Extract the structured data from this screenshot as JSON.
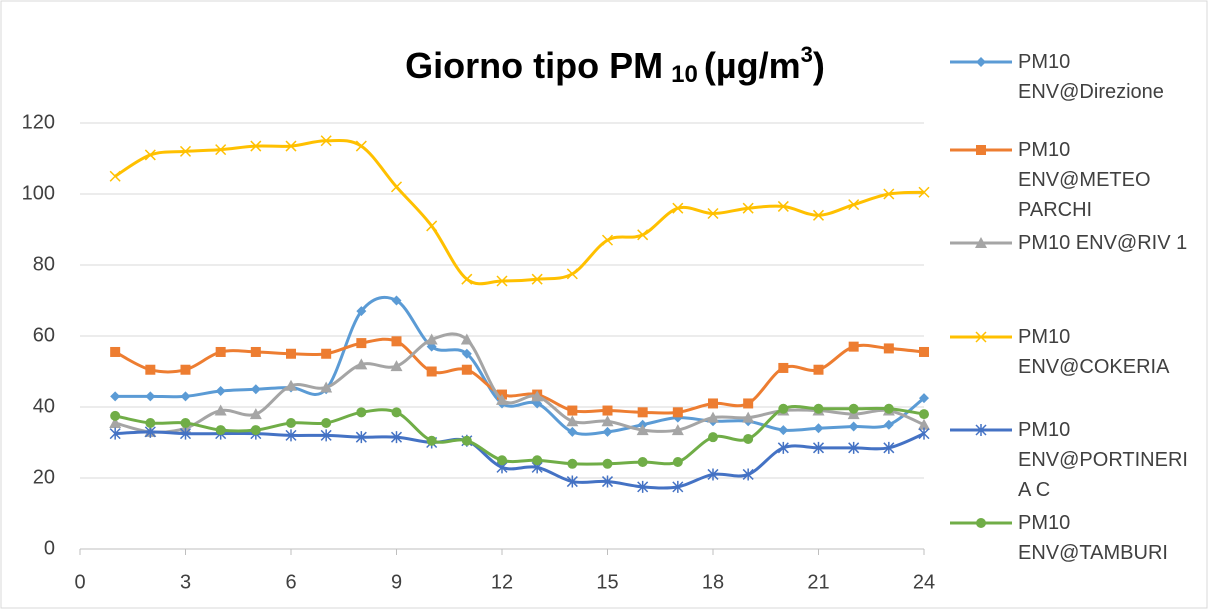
{
  "chart_data": {
    "type": "line",
    "title": [
      "Giorno tipo PM",
      "10",
      "(µg/m",
      "3",
      ")"
    ],
    "x": [
      1,
      2,
      3,
      4,
      5,
      6,
      7,
      8,
      9,
      10,
      11,
      12,
      13,
      14,
      15,
      16,
      17,
      18,
      19,
      20,
      21,
      22,
      23,
      24
    ],
    "xlim": [
      0,
      24
    ],
    "xticks": [
      0,
      3,
      6,
      9,
      12,
      15,
      18,
      21,
      24
    ],
    "ylim": [
      0,
      120
    ],
    "yticks": [
      0,
      20,
      40,
      60,
      80,
      100,
      120
    ],
    "grid": true,
    "smooth": true,
    "legend": "right",
    "series": [
      {
        "name": "PM10 ENV@Direzione",
        "color": "#5b9bd5",
        "marker": "diamond",
        "values": [
          43,
          43,
          43,
          44.5,
          45,
          45.5,
          45,
          67,
          70,
          57,
          55,
          41,
          41,
          33,
          33,
          35,
          37,
          36,
          36,
          33.5,
          34,
          34.5,
          35,
          42.5
        ]
      },
      {
        "name": "PM10 ENV@METEO PARCHI",
        "color": "#ed7d31",
        "marker": "square",
        "values": [
          55.5,
          50.5,
          50.5,
          55.5,
          55.5,
          55,
          55,
          58,
          58.5,
          50,
          50.5,
          43.5,
          43.5,
          39,
          39,
          38.5,
          38.5,
          41,
          41,
          51,
          50.5,
          57,
          56.5,
          55.5
        ]
      },
      {
        "name": "PM10 ENV@RIV 1",
        "color": "#a5a5a5",
        "marker": "triangle",
        "values": [
          35.5,
          33,
          34,
          39,
          38,
          46,
          45.5,
          52,
          51.5,
          59,
          59,
          42,
          43,
          36,
          36,
          33.5,
          33.5,
          37,
          37,
          39,
          39,
          38,
          39,
          35
        ]
      },
      {
        "name": "PM10 ENV@COKERIA",
        "color": "#ffc000",
        "marker": "x",
        "values": [
          105,
          111,
          112,
          112.5,
          113.5,
          113.5,
          115,
          113.5,
          102,
          91,
          76,
          75.5,
          76,
          77.5,
          87,
          88.5,
          96,
          94.5,
          96,
          96.5,
          94,
          97,
          100,
          100.5
        ]
      },
      {
        "name": "PM10 ENV@PORTINERIA C",
        "color": "#4472c4",
        "marker": "star",
        "values": [
          32.5,
          33,
          32.5,
          32.5,
          32.5,
          32,
          32,
          31.5,
          31.5,
          30,
          30.5,
          23,
          23,
          19,
          19,
          17.5,
          17.5,
          21,
          21,
          28.5,
          28.5,
          28.5,
          28.5,
          32.5
        ]
      },
      {
        "name": "PM10 ENV@TAMBURI",
        "color": "#70ad47",
        "marker": "circle",
        "values": [
          37.5,
          35.5,
          35.5,
          33.5,
          33.5,
          35.5,
          35.5,
          38.5,
          38.5,
          30.5,
          30.5,
          25,
          25,
          24,
          24,
          24.5,
          24.5,
          31.5,
          31,
          39.5,
          39.5,
          39.5,
          39.5,
          38
        ]
      }
    ]
  }
}
